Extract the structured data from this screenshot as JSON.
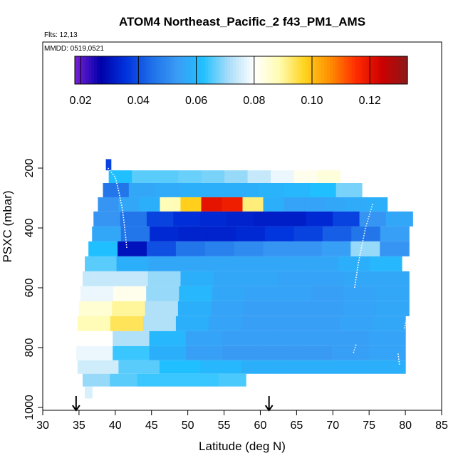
{
  "chart_data": {
    "type": "heatmap",
    "title": "ATOM4 Northeast_Pacific_2 f43_PM1_AMS",
    "flights_note": "Flts: 12,13",
    "date_note": "MMDD: 0519,0521",
    "xlabel": "Latitude (deg N)",
    "ylabel": "PSXC (mbar)",
    "xlim": [
      30,
      85
    ],
    "ylim": [
      1000,
      100
    ],
    "x_ticks": [
      30,
      35,
      40,
      45,
      50,
      55,
      60,
      65,
      70,
      75,
      80,
      85
    ],
    "x_tick_labels": [
      "30",
      "35",
      "40",
      "45",
      "50",
      "55",
      "60",
      "65",
      "70",
      "75",
      "80",
      "85"
    ],
    "y_ticks": [
      200,
      400,
      600,
      800,
      1000
    ],
    "y_tick_labels": [
      "200",
      "400",
      "600",
      "800",
      "1000"
    ],
    "colorbar": {
      "min": 0.018,
      "max": 0.133,
      "ticks": [
        0.02,
        0.04,
        0.06,
        0.08,
        0.1,
        0.12
      ],
      "tick_labels": [
        "0.02",
        "0.04",
        "0.06",
        "0.08",
        "0.10",
        "0.12"
      ],
      "colors": [
        "#7a1fd6",
        "#0000a8",
        "#0033dd",
        "#1e6fe8",
        "#3a9cf5",
        "#1fc0ff",
        "#a8dcf8",
        "#ffffff",
        "#fffcb0",
        "#ffd21c",
        "#ff8c00",
        "#ff2b00",
        "#cc0000",
        "#8b1a1a"
      ]
    },
    "arrows_at_latitude": [
      34.6,
      61.2
    ],
    "bands": [
      {
        "p": 190,
        "x0": 38.7,
        "x1": 39.4,
        "values": [
          0.038
        ]
      },
      {
        "p": 225,
        "x0": 39.1,
        "x1": 71.0,
        "values": [
          0.062,
          0.066,
          0.066,
          0.067,
          0.068,
          0.07,
          0.074,
          0.078,
          0.082,
          0.084
        ]
      },
      {
        "p": 275,
        "x0": 38.3,
        "x1": 74.0,
        "values": [
          0.046,
          0.056,
          0.057,
          0.058,
          0.058,
          0.058,
          0.059,
          0.06,
          0.062,
          0.068
        ]
      },
      {
        "p": 320,
        "x0": 37.6,
        "x1": 77.5,
        "values": [
          0.052,
          0.056,
          0.058,
          0.088,
          0.098,
          0.12,
          0.118,
          0.092,
          0.058,
          0.055,
          0.055,
          0.056,
          0.057,
          0.058
        ]
      },
      {
        "p": 370,
        "x0": 37.0,
        "x1": 81.0,
        "values": [
          0.052,
          0.046,
          0.038,
          0.035,
          0.034,
          0.033,
          0.032,
          0.032,
          0.034,
          0.038,
          0.052,
          0.056
        ]
      },
      {
        "p": 420,
        "x0": 36.8,
        "x1": 80.5,
        "values": [
          0.056,
          0.046,
          0.034,
          0.033,
          0.033,
          0.034,
          0.036,
          0.038,
          0.042,
          0.046,
          0.054
        ]
      },
      {
        "p": 470,
        "x0": 36.3,
        "x1": 80.5,
        "values": [
          0.062,
          0.03,
          0.04,
          0.046,
          0.048,
          0.05,
          0.052,
          0.052,
          0.054,
          0.07,
          0.052
        ]
      },
      {
        "p": 520,
        "x0": 35.8,
        "x1": 79.5,
        "values": [
          0.066,
          0.058,
          0.056,
          0.056,
          0.056,
          0.056,
          0.056,
          0.056,
          0.058,
          0.06
        ]
      },
      {
        "p": 570,
        "x0": 35.5,
        "x1": 80.5,
        "values": [
          0.074,
          0.074,
          0.07,
          0.058,
          0.056,
          0.056,
          0.055,
          0.055,
          0.056,
          0.056
        ]
      },
      {
        "p": 620,
        "x0": 35.2,
        "x1": 80.5,
        "values": [
          0.078,
          0.082,
          0.07,
          0.06,
          0.056,
          0.055,
          0.055,
          0.054,
          0.055,
          0.056
        ]
      },
      {
        "p": 670,
        "x0": 35.0,
        "x1": 80.5,
        "values": [
          0.085,
          0.09,
          0.072,
          0.058,
          0.055,
          0.054,
          0.054,
          0.054,
          0.055,
          0.056
        ]
      },
      {
        "p": 720,
        "x0": 34.8,
        "x1": 80.0,
        "values": [
          0.088,
          0.094,
          0.072,
          0.058,
          0.055,
          0.054,
          0.054,
          0.054,
          0.055,
          0.056
        ]
      },
      {
        "p": 770,
        "x0": 34.6,
        "x1": 80.0,
        "values": [
          0.08,
          0.072,
          0.06,
          0.055,
          0.054,
          0.054,
          0.054,
          0.054,
          0.055
        ]
      },
      {
        "p": 820,
        "x0": 34.6,
        "x1": 80.0,
        "values": [
          0.078,
          0.064,
          0.058,
          0.054,
          0.053,
          0.053,
          0.053,
          0.054,
          0.055
        ]
      },
      {
        "p": 865,
        "x0": 34.8,
        "x1": 80.0,
        "values": [
          0.075,
          0.066,
          0.062,
          0.06,
          0.058,
          0.058,
          0.058,
          0.058
        ]
      },
      {
        "p": 910,
        "x0": 35.5,
        "x1": 58.0,
        "values": [
          0.07,
          0.066,
          0.064,
          0.064,
          0.064,
          0.065
        ]
      },
      {
        "p": 950,
        "x0": 35.8,
        "x1": 36.8,
        "values": [
          0.076
        ]
      }
    ],
    "flight_tracks": [
      [
        [
          39.0,
          200
        ],
        [
          40.0,
          230
        ],
        [
          40.5,
          280
        ],
        [
          41.0,
          340
        ],
        [
          41.3,
          400
        ],
        [
          41.6,
          470
        ]
      ],
      [
        [
          75.5,
          320
        ],
        [
          74.5,
          400
        ],
        [
          74.0,
          460
        ],
        [
          73.5,
          520
        ],
        [
          73.0,
          600
        ]
      ],
      [
        [
          73.2,
          790
        ],
        [
          72.8,
          820
        ]
      ],
      [
        [
          79.0,
          820
        ],
        [
          79.2,
          860
        ]
      ],
      [
        [
          80.2,
          700
        ],
        [
          79.8,
          740
        ]
      ]
    ]
  }
}
